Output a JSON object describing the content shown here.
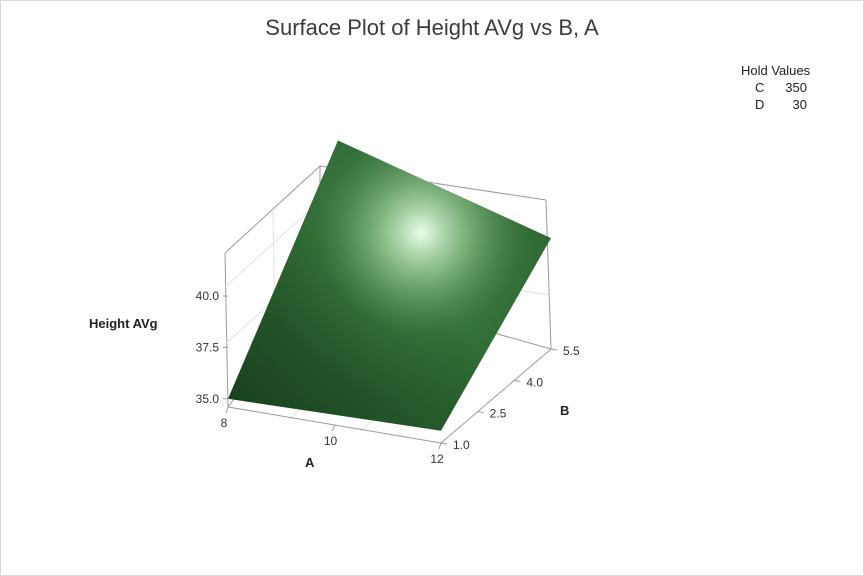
{
  "chart_data": {
    "type": "surface",
    "title": "Surface Plot of Height AVg vs B, A",
    "xlabel": "A",
    "ylabel": "B",
    "zlabel": "Height AVg",
    "x_ticks": [
      "8",
      "10",
      "12"
    ],
    "y_ticks": [
      "1.0",
      "2.5",
      "4.0",
      "5.5"
    ],
    "z_ticks": [
      "35.0",
      "37.5",
      "40.0"
    ],
    "xlim": [
      8,
      12
    ],
    "ylim": [
      1,
      5.5
    ],
    "zlim": [
      34.6,
      42.0
    ],
    "surface_corners": [
      {
        "A": 8,
        "B": 1,
        "height": 35.0
      },
      {
        "A": 12,
        "B": 1,
        "height": 35.2
      },
      {
        "A": 12,
        "B": 5.5,
        "height": 40.0
      },
      {
        "A": 8,
        "B": 5.5,
        "height": 43.0
      }
    ],
    "surface_color": "#2f6b34",
    "hold_values": {
      "title": "Hold Values",
      "items": [
        {
          "name": "C",
          "value": "350"
        },
        {
          "name": "D",
          "value": "30"
        }
      ]
    }
  }
}
